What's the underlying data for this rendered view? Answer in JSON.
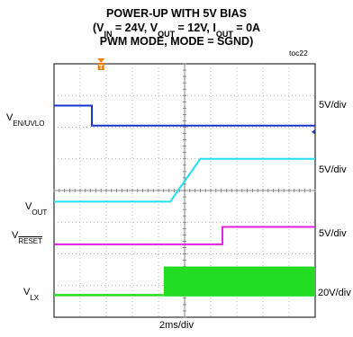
{
  "chart_data": {
    "type": "line",
    "title": {
      "line1": "POWER-UP WITH 5V BIAS",
      "line2": {
        "open": "(V",
        "in_sub": "IN",
        "in_val": " = 24V, V",
        "out_sub": "OUT",
        "out_val": " = 12V, I",
        "iout_sub": "OUT",
        "iout_val": " = 0A"
      },
      "line3": "PWM MODE, MODE = SGND)"
    },
    "tag": "toc22",
    "time_scale": "2ms/div",
    "divisions_x": 10,
    "divisions_y": 8,
    "grid": true,
    "trigger_marker": "T",
    "channels": [
      {
        "name": "V_EN/UVLO",
        "label_main": "V",
        "label_sub": "EN/UVLO",
        "scale": "5V/div",
        "color": "#1a33cc",
        "points": [
          [
            0,
            1.32
          ],
          [
            1.45,
            1.32
          ],
          [
            1.45,
            1.95
          ],
          [
            10,
            1.95
          ]
        ]
      },
      {
        "name": "V_OUT",
        "label_main": "V",
        "label_sub": "OUT",
        "scale": "5V/div",
        "color": "#22e0f0",
        "points": [
          [
            0,
            4.35
          ],
          [
            4.45,
            4.35
          ],
          [
            5.6,
            3.0
          ],
          [
            10,
            3.0
          ]
        ]
      },
      {
        "name": "V_RESET",
        "label_main": "V",
        "label_sub": "RESET",
        "scale": "5V/div",
        "color": "#e020e0",
        "points": [
          [
            0,
            5.7
          ],
          [
            6.45,
            5.7
          ],
          [
            6.45,
            5.15
          ],
          [
            10,
            5.15
          ]
        ]
      },
      {
        "name": "V_LX",
        "label_main": "V",
        "label_sub": "LX",
        "scale": "20V/div",
        "color": "#22dd22",
        "low_level": 7.3,
        "high_level": 6.4,
        "switch_start": 4.2
      }
    ]
  }
}
